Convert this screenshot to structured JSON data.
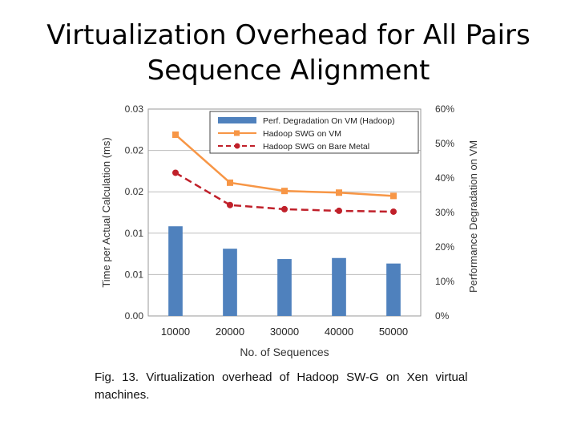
{
  "slide": {
    "title_line1": "Virtualization Overhead for All Pairs",
    "title_line2": "Sequence Alignment"
  },
  "caption": {
    "line1": "Fig. 13. Virtualization overhead of Hadoop SW-G on Xen virtual",
    "line2": "machines."
  },
  "chart_data": {
    "type": "bar+line",
    "categories": [
      "10000",
      "20000",
      "30000",
      "40000",
      "50000"
    ],
    "xlabel": "No. of Sequences",
    "ylabel_left": "Time per Actual Calculation (ms)",
    "ylabel_right": "Performance Degradation on VM",
    "left_ticks": [
      "0.00",
      "0.01",
      "0.01",
      "0.02",
      "0.02",
      "0.03"
    ],
    "right_ticks": [
      "0%",
      "10%",
      "20%",
      "30%",
      "40%",
      "50%",
      "60%"
    ],
    "ylim_left": [
      0,
      0.025
    ],
    "ylim_right": [
      0,
      0.6
    ],
    "legend_position": "top-right",
    "grid": true,
    "series": [
      {
        "name": "Perf. Degradation On VM (Hadoop)",
        "kind": "bar",
        "axis": "right",
        "color": "#4f81bd",
        "values": [
          0.26,
          0.195,
          0.165,
          0.168,
          0.152
        ]
      },
      {
        "name": "Hadoop SWG on VM",
        "kind": "line",
        "axis": "left",
        "color": "#f79646",
        "marker": "square",
        "values": [
          0.0219,
          0.0161,
          0.0151,
          0.0149,
          0.0145
        ]
      },
      {
        "name": "Hadoop SWG on Bare Metal",
        "kind": "line",
        "axis": "left",
        "color": "#c0202a",
        "marker": "circle",
        "dash": true,
        "values": [
          0.0173,
          0.0134,
          0.0129,
          0.0127,
          0.0126
        ]
      }
    ]
  }
}
